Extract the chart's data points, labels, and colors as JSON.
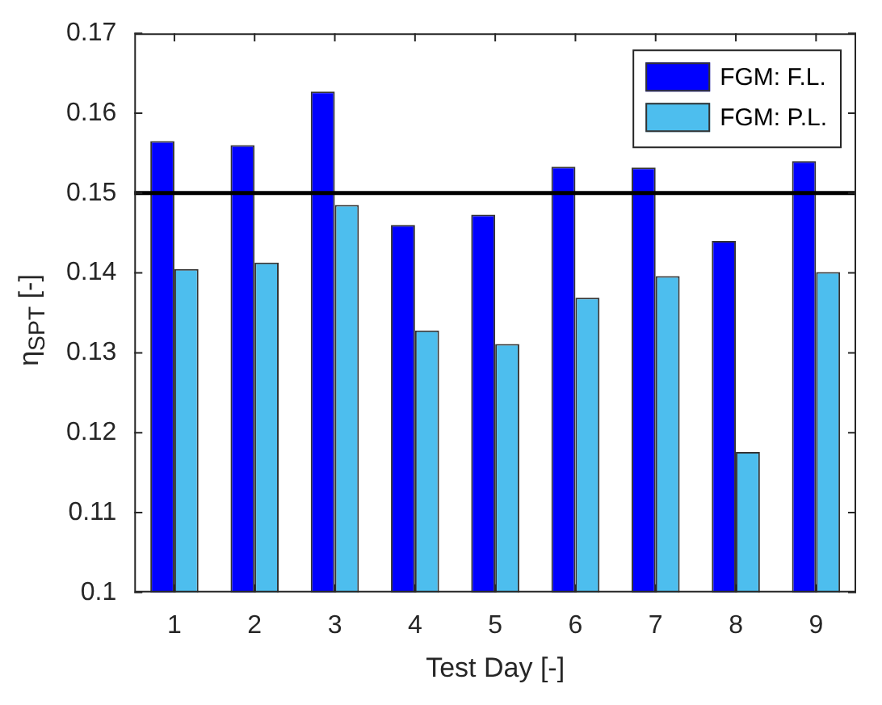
{
  "chart_data": {
    "type": "bar",
    "xlabel": "Test Day [-]",
    "ylabel": "η$_{SPT}$ [-]",
    "categories": [
      "1",
      "2",
      "3",
      "4",
      "5",
      "6",
      "7",
      "8",
      "9"
    ],
    "series": [
      {
        "name": "FGM: F.L.",
        "color": "#0000ff",
        "values": [
          0.1565,
          0.156,
          0.1627,
          0.146,
          0.1473,
          0.1533,
          0.1532,
          0.144,
          0.154
        ]
      },
      {
        "name": "FGM: P.L.",
        "color": "#4dbeee",
        "values": [
          0.1405,
          0.1413,
          0.1485,
          0.1328,
          0.1311,
          0.1369,
          0.1396,
          0.1176,
          0.1401
        ]
      }
    ],
    "ylim": [
      0.1,
      0.17
    ],
    "yticks": [
      {
        "value": 0.1,
        "label": "0.1"
      },
      0.11,
      0.12,
      0.13,
      0.14,
      0.15,
      0.16,
      0.17
    ],
    "ref_lines": [
      {
        "axis": "y",
        "value": 0.15,
        "color": "#000000"
      }
    ],
    "grid": false,
    "legend": "top right"
  }
}
